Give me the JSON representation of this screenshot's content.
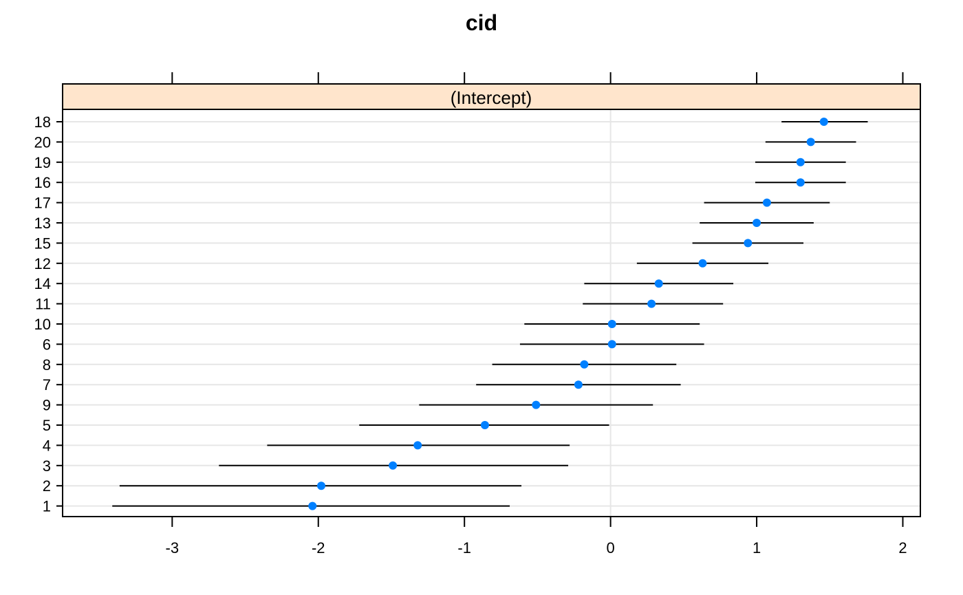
{
  "chart_data": {
    "type": "scatter",
    "title": "cid",
    "panel_label": "(Intercept)",
    "xlim": [
      -3.75,
      2.12
    ],
    "x_ticks": [
      -3,
      -2,
      -1,
      0,
      1,
      2
    ],
    "x_tick_labels": [
      "-3",
      "-2",
      "-1",
      "0",
      "1",
      "2"
    ],
    "reference_line": 0,
    "grid": true,
    "categories": [
      "18",
      "20",
      "19",
      "16",
      "17",
      "13",
      "15",
      "12",
      "14",
      "11",
      "10",
      "6",
      "8",
      "7",
      "9",
      "5",
      "4",
      "3",
      "2",
      "1"
    ],
    "estimates": [
      1.46,
      1.37,
      1.3,
      1.3,
      1.07,
      1.0,
      0.94,
      0.63,
      0.33,
      0.28,
      0.01,
      0.01,
      -0.18,
      -0.22,
      -0.51,
      -0.86,
      -1.32,
      -1.49,
      -1.98,
      -2.04
    ],
    "lower": [
      1.17,
      1.06,
      0.99,
      0.99,
      0.64,
      0.61,
      0.56,
      0.18,
      -0.18,
      -0.19,
      -0.59,
      -0.62,
      -0.81,
      -0.92,
      -1.31,
      -1.72,
      -2.35,
      -2.68,
      -3.36,
      -3.41
    ],
    "upper": [
      1.76,
      1.68,
      1.61,
      1.61,
      1.5,
      1.39,
      1.32,
      1.08,
      0.84,
      0.77,
      0.61,
      0.64,
      0.45,
      0.48,
      0.29,
      -0.01,
      -0.28,
      -0.29,
      -0.61,
      -0.69
    ],
    "colors": {
      "point": "#0080ff",
      "strip": "#ffe5cc",
      "interval": "#000000",
      "grid": "#e6e6e6"
    }
  }
}
